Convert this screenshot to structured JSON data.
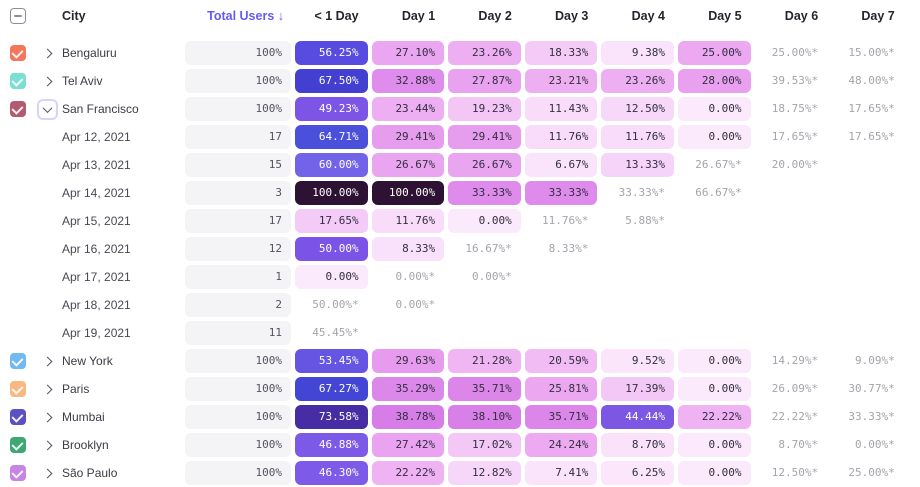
{
  "header": {
    "select_all_state": "indeterminate",
    "city_label": "City",
    "total_users_label": "Total Users ↓",
    "day_columns": [
      "< 1 Day",
      "Day 1",
      "Day 2",
      "Day 3",
      "Day 4",
      "Day 5",
      "Day 6",
      "Day 7"
    ]
  },
  "colors": {
    "accent_sort": "#655cf0",
    "pill_bg": "#f4f3f5",
    "forecast_text": "#a5a3ab",
    "dark_cell_text": "#332e40",
    "light_cell_text": "#ffffff"
  },
  "rows": [
    {
      "kind": "city",
      "label": "Bengaluru",
      "checkbox": "#f4765b",
      "expanded": false,
      "total": "100%",
      "cells": [
        [
          "56.25%",
          "#584be0"
        ],
        [
          "27.10%",
          "#eba6f1"
        ],
        [
          "23.26%",
          "#eeaff2"
        ],
        [
          "18.33%",
          "#f4cbf7"
        ],
        [
          "9.38%",
          "#fae4fb"
        ],
        [
          "25.00%",
          "#eca9f1"
        ],
        [
          "25.00%*",
          null
        ],
        [
          "15.00%*",
          null
        ]
      ]
    },
    {
      "kind": "city",
      "label": "Tel Aviv",
      "checkbox": "#7cdfd6",
      "expanded": false,
      "total": "100%",
      "cells": [
        [
          "67.50%",
          "#4340d1"
        ],
        [
          "32.88%",
          "#de8dec"
        ],
        [
          "27.87%",
          "#e9a2f0"
        ],
        [
          "23.21%",
          "#eeaff2"
        ],
        [
          "23.26%",
          "#eeaff2"
        ],
        [
          "28.00%",
          "#e9a1ef"
        ],
        [
          "39.53%*",
          null
        ],
        [
          "48.00%*",
          null
        ]
      ]
    },
    {
      "kind": "city",
      "label": "San Francisco",
      "checkbox": "#b45a70",
      "expanded": true,
      "total": "100%",
      "cells": [
        [
          "49.23%",
          "#7c55e7"
        ],
        [
          "23.44%",
          "#eeaef2"
        ],
        [
          "19.23%",
          "#f3c6f6"
        ],
        [
          "11.43%",
          "#f8dcfa"
        ],
        [
          "12.50%",
          "#f7d8f9"
        ],
        [
          "0.00%",
          "#fbeafc"
        ],
        [
          "18.75%*",
          null
        ],
        [
          "17.65%*",
          null
        ]
      ]
    },
    {
      "kind": "date",
      "label": "Apr 12, 2021",
      "total": "17",
      "cells": [
        [
          "64.71%",
          "#4b50db"
        ],
        [
          "29.41%",
          "#e79dee"
        ],
        [
          "29.41%",
          "#e79dee"
        ],
        [
          "11.76%",
          "#f8dcfa"
        ],
        [
          "11.76%",
          "#f8dcfa"
        ],
        [
          "0.00%",
          "#fbeafc"
        ],
        [
          "17.65%*",
          null
        ],
        [
          "17.65%*",
          null
        ]
      ]
    },
    {
      "kind": "date",
      "label": "Apr 13, 2021",
      "total": "15",
      "cells": [
        [
          "60.00%",
          "#7263e8"
        ],
        [
          "26.67%",
          "#eaa5f0"
        ],
        [
          "26.67%",
          "#eaa5f0"
        ],
        [
          "6.67%",
          "#fae4fb"
        ],
        [
          "13.33%",
          "#f6d4f9"
        ],
        [
          "26.67%*",
          null
        ],
        [
          "20.00%*",
          null
        ],
        [
          "",
          null
        ]
      ]
    },
    {
      "kind": "date",
      "label": "Apr 14, 2021",
      "total": "3",
      "cells": [
        [
          "100.00%",
          "#2e1233"
        ],
        [
          "100.00%",
          "#2e1233"
        ],
        [
          "33.33%",
          "#de8bec"
        ],
        [
          "33.33%",
          "#de8bec"
        ],
        [
          "33.33%*",
          null
        ],
        [
          "66.67%*",
          null
        ],
        [
          "",
          null
        ],
        [
          "",
          null
        ]
      ]
    },
    {
      "kind": "date",
      "label": "Apr 15, 2021",
      "total": "17",
      "cells": [
        [
          "17.65%",
          "#f4caf7"
        ],
        [
          "11.76%",
          "#f8dcfa"
        ],
        [
          "0.00%",
          "#fbeafc"
        ],
        [
          "11.76%*",
          null
        ],
        [
          "5.88%*",
          null
        ],
        [
          "",
          null
        ],
        [
          "",
          null
        ],
        [
          "",
          null
        ]
      ]
    },
    {
      "kind": "date",
      "label": "Apr 16, 2021",
      "total": "12",
      "cells": [
        [
          "50.00%",
          "#7b53e6"
        ],
        [
          "8.33%",
          "#fae1fb"
        ],
        [
          "16.67%*",
          null
        ],
        [
          "8.33%*",
          null
        ],
        [
          "",
          null
        ],
        [
          "",
          null
        ],
        [
          "",
          null
        ],
        [
          "",
          null
        ]
      ]
    },
    {
      "kind": "date",
      "label": "Apr 17, 2021",
      "total": "1",
      "cells": [
        [
          "0.00%",
          "#fbeafc"
        ],
        [
          "0.00%*",
          null
        ],
        [
          "0.00%*",
          null
        ],
        [
          "",
          null
        ],
        [
          "",
          null
        ],
        [
          "",
          null
        ],
        [
          "",
          null
        ],
        [
          "",
          null
        ]
      ]
    },
    {
      "kind": "date",
      "label": "Apr 18, 2021",
      "total": "2",
      "cells": [
        [
          "50.00%*",
          null
        ],
        [
          "0.00%*",
          null
        ],
        [
          "",
          null
        ],
        [
          "",
          null
        ],
        [
          "",
          null
        ],
        [
          "",
          null
        ],
        [
          "",
          null
        ],
        [
          "",
          null
        ]
      ]
    },
    {
      "kind": "date",
      "label": "Apr 19, 2021",
      "total": "11",
      "cells": [
        [
          "45.45%*",
          null
        ],
        [
          "",
          null
        ],
        [
          "",
          null
        ],
        [
          "",
          null
        ],
        [
          "",
          null
        ],
        [
          "",
          null
        ],
        [
          "",
          null
        ],
        [
          "",
          null
        ]
      ]
    },
    {
      "kind": "city",
      "label": "New York",
      "checkbox": "#70b9f1",
      "expanded": false,
      "total": "100%",
      "cells": [
        [
          "53.45%",
          "#6555e2"
        ],
        [
          "29.63%",
          "#e69bee"
        ],
        [
          "21.28%",
          "#f0b6f4"
        ],
        [
          "20.59%",
          "#f1bcf4"
        ],
        [
          "9.52%",
          "#fae5fb"
        ],
        [
          "0.00%",
          "#fbeafc"
        ],
        [
          "14.29%*",
          null
        ],
        [
          "9.09%*",
          null
        ]
      ]
    },
    {
      "kind": "city",
      "label": "Paris",
      "checkbox": "#f9b87f",
      "expanded": false,
      "total": "100%",
      "cells": [
        [
          "67.27%",
          "#4345d5"
        ],
        [
          "35.29%",
          "#dc87ea"
        ],
        [
          "35.71%",
          "#dc86ea"
        ],
        [
          "25.81%",
          "#eca7f1"
        ],
        [
          "17.39%",
          "#f3c8f7"
        ],
        [
          "0.00%",
          "#fbeafc"
        ],
        [
          "26.09%*",
          null
        ],
        [
          "30.77%*",
          null
        ]
      ]
    },
    {
      "kind": "city",
      "label": "Mumbai",
      "checkbox": "#5c50c2",
      "expanded": false,
      "total": "100%",
      "cells": [
        [
          "73.58%",
          "#472da3"
        ],
        [
          "38.78%",
          "#d77de8"
        ],
        [
          "38.10%",
          "#d87fe8"
        ],
        [
          "35.71%",
          "#dc86ea"
        ],
        [
          "44.44%",
          "#7b57e3"
        ],
        [
          "22.22%",
          "#efb2f3"
        ],
        [
          "22.22%*",
          null
        ],
        [
          "33.33%*",
          null
        ]
      ]
    },
    {
      "kind": "city",
      "label": "Brooklyn",
      "checkbox": "#3ea873",
      "expanded": false,
      "total": "100%",
      "cells": [
        [
          "46.88%",
          "#7d59e8"
        ],
        [
          "27.42%",
          "#e9a3f0"
        ],
        [
          "17.02%",
          "#f3c7f6"
        ],
        [
          "24.24%",
          "#edaaf1"
        ],
        [
          "8.70%",
          "#fae2fb"
        ],
        [
          "0.00%",
          "#fbeafc"
        ],
        [
          "8.70%*",
          null
        ],
        [
          "0.00%*",
          null
        ]
      ]
    },
    {
      "kind": "city",
      "label": "São Paulo",
      "checkbox": "#c685e4",
      "expanded": false,
      "total": "100%",
      "cells": [
        [
          "46.30%",
          "#7d5be8"
        ],
        [
          "22.22%",
          "#efb2f3"
        ],
        [
          "12.82%",
          "#f7d7f9"
        ],
        [
          "7.41%",
          "#fae4fb"
        ],
        [
          "6.25%",
          "#fbe6fb"
        ],
        [
          "0.00%",
          "#fbeafc"
        ],
        [
          "12.50%*",
          null
        ],
        [
          "25.00%*",
          null
        ]
      ]
    }
  ]
}
